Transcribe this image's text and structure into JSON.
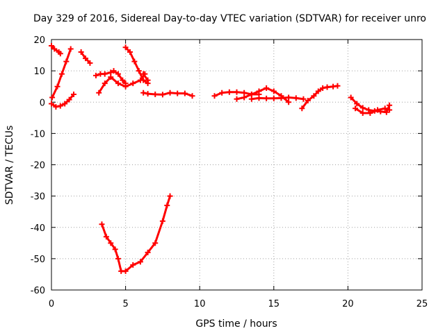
{
  "chart_data": {
    "type": "scatter",
    "title": "Day 329 of 2016, Sidereal Day-to-day VTEC variation (SDTVAR) for receiver unro",
    "xlabel": "GPS time / hours",
    "ylabel": "SDTVAR / TECUs",
    "xlim": [
      0,
      25
    ],
    "ylim": [
      -60,
      20
    ],
    "xticks": [
      0,
      5,
      10,
      15,
      20,
      25
    ],
    "yticks": [
      -60,
      -50,
      -40,
      -30,
      -20,
      -10,
      0,
      10,
      20
    ],
    "grid": true,
    "marker": "plus",
    "color": "#ff0000",
    "series": [
      {
        "x": [
          0.05,
          0.4,
          0.7,
          1.0,
          1.3
        ],
        "y": [
          1.5,
          5,
          9,
          13,
          17
        ]
      },
      {
        "x": [
          0.0,
          0.3,
          0.6,
          0.9,
          1.2,
          1.5
        ],
        "y": [
          -0.5,
          -1.5,
          -1.2,
          -0.5,
          0.8,
          2.5
        ]
      },
      {
        "x": [
          0.0,
          0.2,
          0.5,
          0.6
        ],
        "y": [
          18,
          17,
          16,
          15.5
        ]
      },
      {
        "x": [
          2.0,
          2.3,
          2.6
        ],
        "y": [
          16,
          14,
          12.5
        ]
      },
      {
        "x": [
          3.0,
          3.3,
          3.6,
          4.0,
          4.2,
          4.5,
          4.8,
          5.0
        ],
        "y": [
          8.5,
          9,
          9,
          9.5,
          10,
          9,
          7,
          6
        ]
      },
      {
        "x": [
          3.2,
          3.6,
          4.0,
          4.5,
          5.0,
          5.5,
          6.0,
          6.3
        ],
        "y": [
          3,
          6,
          8,
          6,
          5,
          6,
          7,
          9
        ]
      },
      {
        "x": [
          5.0,
          5.3,
          5.6,
          5.9,
          6.2,
          6.5,
          6.5,
          6.2
        ],
        "y": [
          17.5,
          16,
          13,
          10,
          7,
          6,
          7,
          9
        ]
      },
      {
        "x": [
          6.2,
          6.5,
          7.0,
          7.5,
          8.0,
          8.5,
          9.0,
          9.5
        ],
        "y": [
          3,
          2.7,
          2.5,
          2.4,
          3.0,
          2.8,
          2.8,
          2.0
        ]
      },
      {
        "x": [
          3.4,
          3.7,
          4.0,
          4.3,
          4.5,
          4.7,
          5.0,
          5.5,
          6.0,
          6.5,
          7.0,
          7.5,
          7.8,
          8.0
        ],
        "y": [
          -39,
          -43,
          -45,
          -47,
          -50,
          -54,
          -54,
          -52,
          -51,
          -48,
          -45,
          -38,
          -33,
          -30
        ]
      },
      {
        "x": [
          11.0,
          11.5,
          12.0,
          12.5,
          13.0,
          13.5,
          14.0
        ],
        "y": [
          2,
          3,
          3.2,
          3.2,
          3,
          2.5,
          2.5
        ]
      },
      {
        "x": [
          12.5,
          13.0,
          13.5,
          14.0,
          14.5,
          15.0,
          15.5,
          16.0
        ],
        "y": [
          1,
          1.5,
          2.5,
          3.5,
          4.5,
          3.5,
          2,
          0
        ]
      },
      {
        "x": [
          13.5,
          14.0,
          14.5,
          15.0,
          15.5,
          16.0,
          16.5,
          17.0
        ],
        "y": [
          1,
          1.3,
          1.2,
          1.2,
          1.3,
          1.5,
          1.3,
          1.0
        ]
      },
      {
        "x": [
          16.9,
          17.3,
          17.7,
          18.0,
          18.3,
          18.6,
          19.0,
          19.3
        ],
        "y": [
          -2,
          0.5,
          2,
          3.5,
          4.5,
          4.8,
          5,
          5.2
        ]
      },
      {
        "x": [
          20.2,
          20.6,
          21.0,
          21.4,
          21.8,
          22.2,
          22.6,
          22.8
        ],
        "y": [
          1.5,
          -0.5,
          -1.8,
          -2.5,
          -2.8,
          -3,
          -3.2,
          -1
        ]
      },
      {
        "x": [
          20.5,
          21.0,
          21.5,
          22.0,
          22.5,
          22.8
        ],
        "y": [
          -2,
          -3.5,
          -3.5,
          -2.5,
          -2.0,
          -2.5
        ]
      }
    ]
  }
}
